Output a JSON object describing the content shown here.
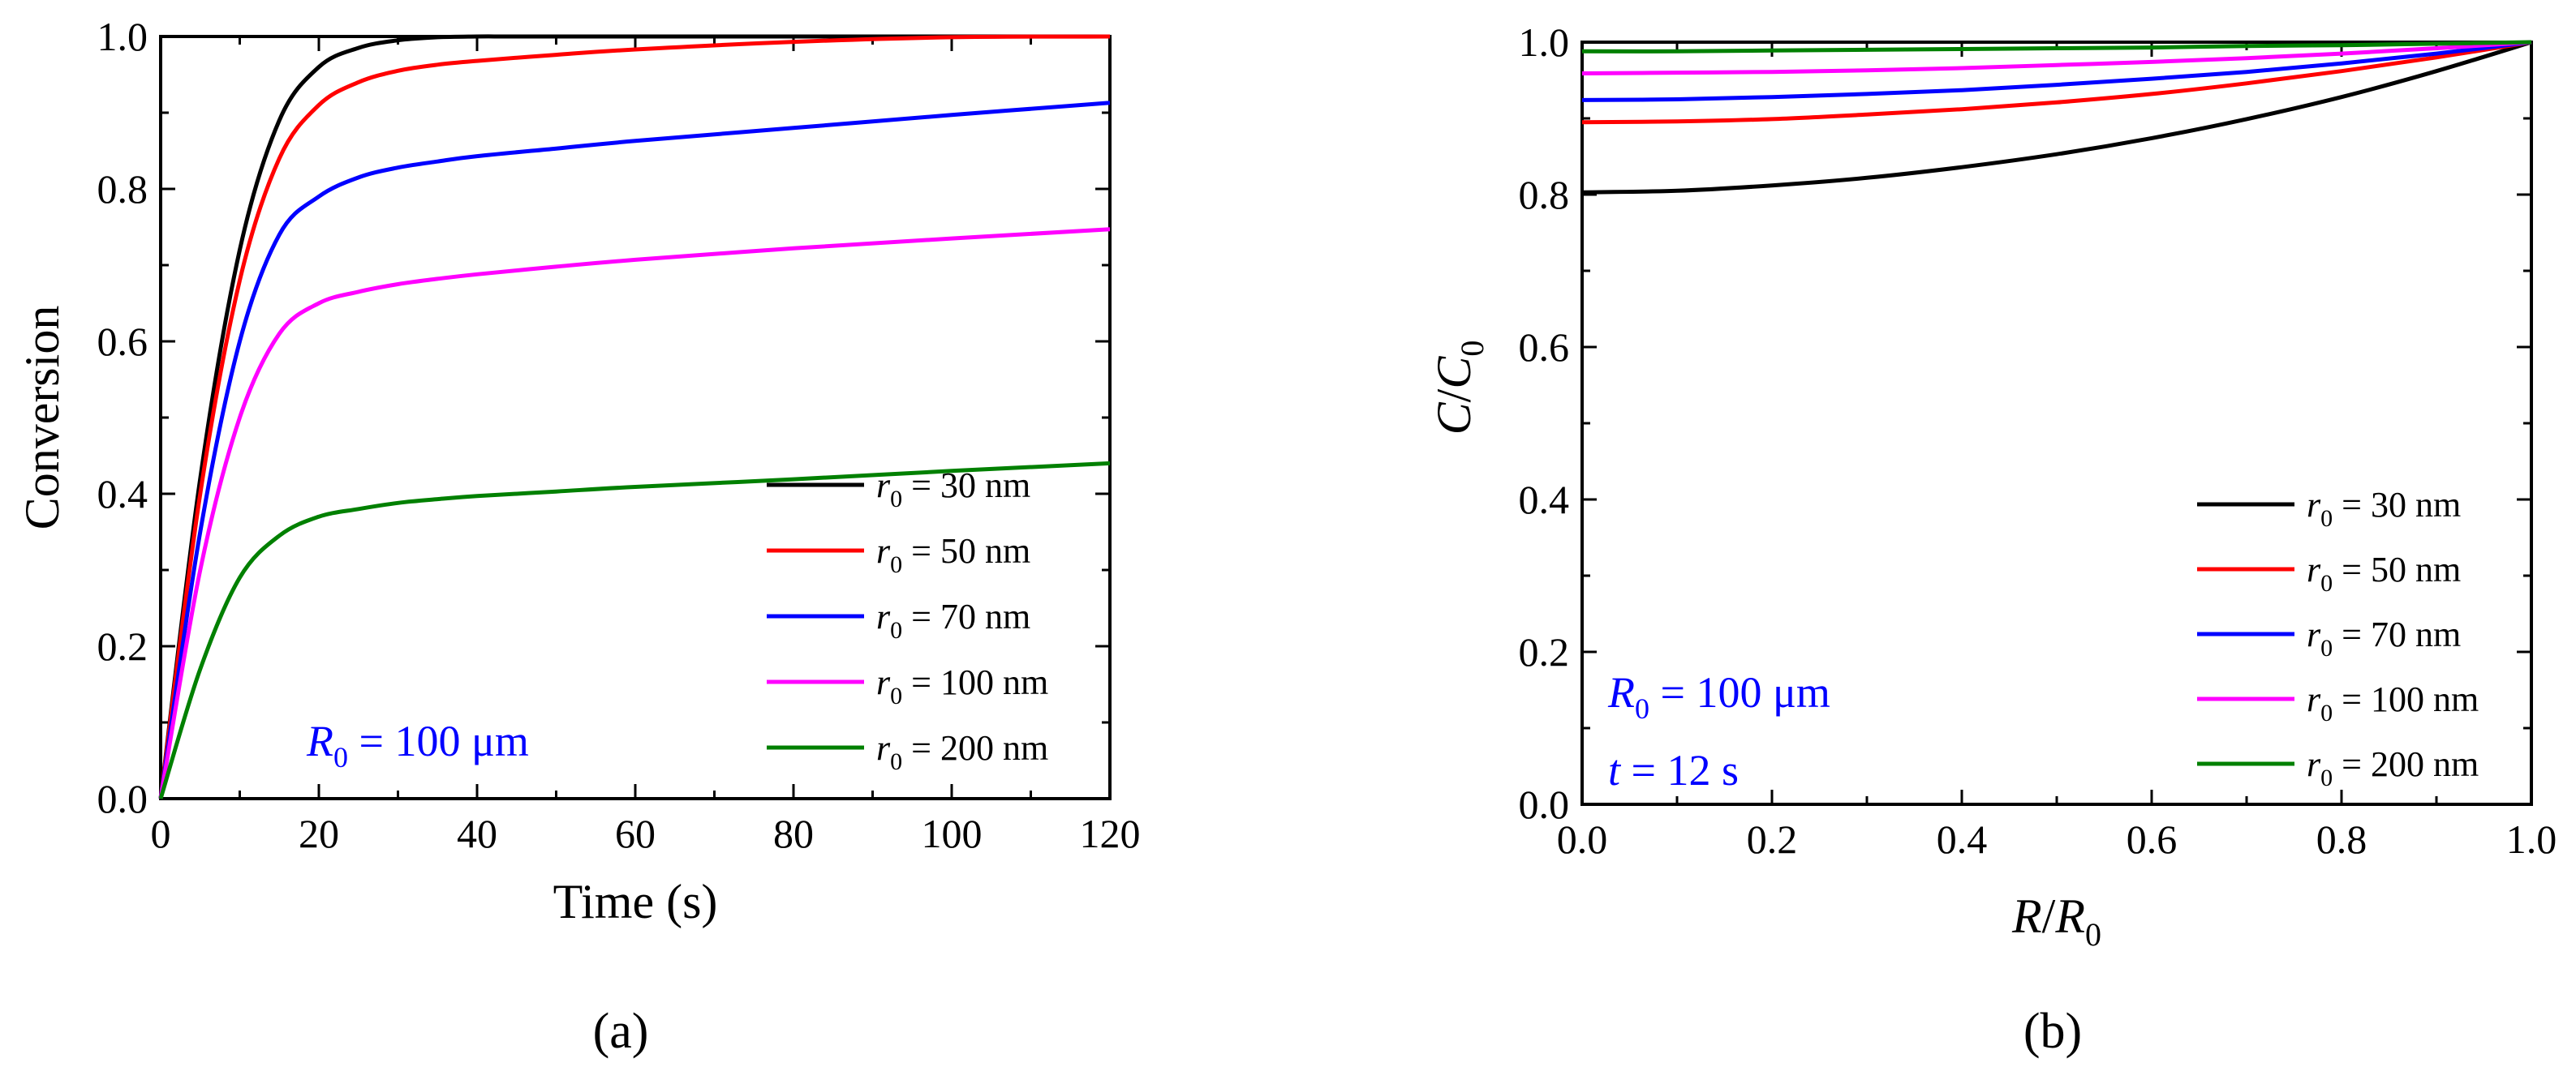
{
  "chart_data": [
    {
      "type": "line",
      "panel_label": "(a)",
      "xlabel": "Time (s)",
      "ylabel": "Conversion",
      "xlim": [
        0,
        120
      ],
      "ylim": [
        0,
        1.0
      ],
      "xticks": [
        "0",
        "20",
        "40",
        "60",
        "80",
        "100",
        "120"
      ],
      "yticks": [
        "0.0",
        "0.2",
        "0.4",
        "0.6",
        "0.8",
        "1.0"
      ],
      "annotation": {
        "symbol": "R",
        "sub": "0",
        "text": " = 100 μm",
        "color": "#0000ff"
      },
      "legend_position": "bottom-right",
      "series": [
        {
          "name": "r0 = 30 nm",
          "sym": "r",
          "sub": "0",
          "label": " = 30 nm",
          "color": "#000000",
          "x": [
            0,
            5,
            10,
            15,
            20,
            25,
            30,
            35,
            40,
            45,
            60,
            80,
            100,
            120
          ],
          "y": [
            0,
            0.42,
            0.72,
            0.89,
            0.96,
            0.985,
            0.995,
            0.999,
            1.0,
            1.0,
            1.0,
            1.0,
            1.0,
            1.0
          ]
        },
        {
          "name": "r0 = 50 nm",
          "sym": "r",
          "sub": "0",
          "label": " = 50 nm",
          "color": "#ff0000",
          "x": [
            0,
            5,
            10,
            15,
            20,
            25,
            30,
            35,
            40,
            50,
            60,
            80,
            100,
            120
          ],
          "y": [
            0,
            0.4,
            0.68,
            0.84,
            0.91,
            0.94,
            0.955,
            0.963,
            0.968,
            0.976,
            0.983,
            0.993,
            0.999,
            1.0
          ]
        },
        {
          "name": "r0 = 70 nm",
          "sym": "r",
          "sub": "0",
          "label": " = 70 nm",
          "color": "#0000ff",
          "x": [
            0,
            5,
            10,
            15,
            20,
            25,
            30,
            35,
            40,
            50,
            60,
            80,
            100,
            120
          ],
          "y": [
            0,
            0.35,
            0.6,
            0.74,
            0.79,
            0.815,
            0.828,
            0.836,
            0.843,
            0.853,
            0.863,
            0.88,
            0.897,
            0.913
          ]
        },
        {
          "name": "r0 = 100 nm",
          "sym": "r",
          "sub": "0",
          "label": " = 100 nm",
          "color": "#ff00ff",
          "x": [
            0,
            5,
            10,
            15,
            20,
            25,
            30,
            35,
            40,
            50,
            60,
            80,
            100,
            120
          ],
          "y": [
            0,
            0.3,
            0.5,
            0.61,
            0.65,
            0.665,
            0.675,
            0.682,
            0.688,
            0.698,
            0.707,
            0.722,
            0.735,
            0.747
          ]
        },
        {
          "name": "r0 = 200 nm",
          "sym": "r",
          "sub": "0",
          "label": " = 200 nm",
          "color": "#008000",
          "x": [
            0,
            5,
            10,
            15,
            20,
            25,
            30,
            35,
            40,
            50,
            60,
            80,
            100,
            120
          ],
          "y": [
            0,
            0.17,
            0.29,
            0.345,
            0.37,
            0.38,
            0.388,
            0.393,
            0.397,
            0.403,
            0.409,
            0.419,
            0.43,
            0.44
          ]
        }
      ]
    },
    {
      "type": "line",
      "panel_label": "(b)",
      "xlabel_sym": "R",
      "xlabel_sep": "/",
      "xlabel_sym2": "R",
      "xlabel_sub": "0",
      "ylabel_sym": "C",
      "ylabel_sep": "/",
      "ylabel_sym2": "C",
      "ylabel_sub": "0",
      "xlim": [
        0,
        1.0
      ],
      "ylim": [
        0,
        1.0
      ],
      "xticks": [
        "0.0",
        "0.2",
        "0.4",
        "0.6",
        "0.8",
        "1.0"
      ],
      "yticks": [
        "0.0",
        "0.2",
        "0.4",
        "0.6",
        "0.8",
        "1.0"
      ],
      "annotations": [
        {
          "symbol": "R",
          "sub": "0",
          "text": " = 100 μm",
          "color": "#0000ff"
        },
        {
          "symbol": "t",
          "sub": "",
          "text": " = 12 s",
          "color": "#0000ff"
        }
      ],
      "legend_position": "bottom-right",
      "series": [
        {
          "name": "r0 = 30 nm",
          "sym": "r",
          "sub": "0",
          "label": " = 30 nm",
          "color": "#000000",
          "x": [
            0,
            0.1,
            0.2,
            0.3,
            0.4,
            0.5,
            0.6,
            0.7,
            0.8,
            0.9,
            1.0
          ],
          "y": [
            0.803,
            0.805,
            0.812,
            0.822,
            0.836,
            0.853,
            0.874,
            0.899,
            0.928,
            0.962,
            1.0
          ]
        },
        {
          "name": "r0 = 50 nm",
          "sym": "r",
          "sub": "0",
          "label": " = 50 nm",
          "color": "#ff0000",
          "x": [
            0,
            0.1,
            0.2,
            0.3,
            0.4,
            0.5,
            0.6,
            0.7,
            0.8,
            0.9,
            1.0
          ],
          "y": [
            0.895,
            0.896,
            0.899,
            0.905,
            0.912,
            0.921,
            0.932,
            0.946,
            0.962,
            0.98,
            1.0
          ]
        },
        {
          "name": "r0 = 70 nm",
          "sym": "r",
          "sub": "0",
          "label": " = 70 nm",
          "color": "#0000ff",
          "x": [
            0,
            0.1,
            0.2,
            0.3,
            0.4,
            0.5,
            0.6,
            0.7,
            0.8,
            0.9,
            1.0
          ],
          "y": [
            0.924,
            0.925,
            0.928,
            0.932,
            0.937,
            0.944,
            0.952,
            0.961,
            0.972,
            0.985,
            1.0
          ]
        },
        {
          "name": "r0 = 100 nm",
          "sym": "r",
          "sub": "0",
          "label": " = 100 nm",
          "color": "#ff00ff",
          "x": [
            0,
            0.1,
            0.2,
            0.3,
            0.4,
            0.5,
            0.6,
            0.7,
            0.8,
            0.9,
            1.0
          ],
          "y": [
            0.959,
            0.96,
            0.961,
            0.963,
            0.966,
            0.97,
            0.974,
            0.979,
            0.985,
            0.992,
            1.0
          ]
        },
        {
          "name": "r0 = 200 nm",
          "sym": "r",
          "sub": "0",
          "label": " = 200 nm",
          "color": "#008000",
          "x": [
            0,
            0.1,
            0.2,
            0.3,
            0.4,
            0.5,
            0.6,
            0.7,
            0.8,
            0.9,
            1.0
          ],
          "y": [
            0.988,
            0.988,
            0.989,
            0.99,
            0.991,
            0.992,
            0.993,
            0.995,
            0.996,
            0.998,
            1.0
          ]
        }
      ]
    }
  ]
}
